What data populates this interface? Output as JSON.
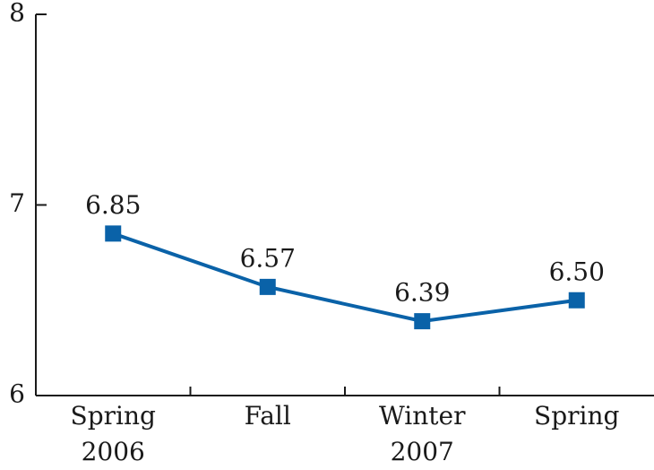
{
  "chart_data": {
    "type": "line",
    "categories": [
      "Spring 2006",
      "Fall",
      "Winter 2007",
      "Spring"
    ],
    "series": [
      {
        "color": "#0a62a8",
        "values": [
          6.85,
          6.57,
          6.39,
          6.5
        ],
        "value_labels": [
          "6.85",
          "6.57",
          "6.39",
          "6.50"
        ]
      }
    ],
    "ylim": [
      6,
      8
    ],
    "yticks": [
      6,
      7,
      8
    ]
  }
}
